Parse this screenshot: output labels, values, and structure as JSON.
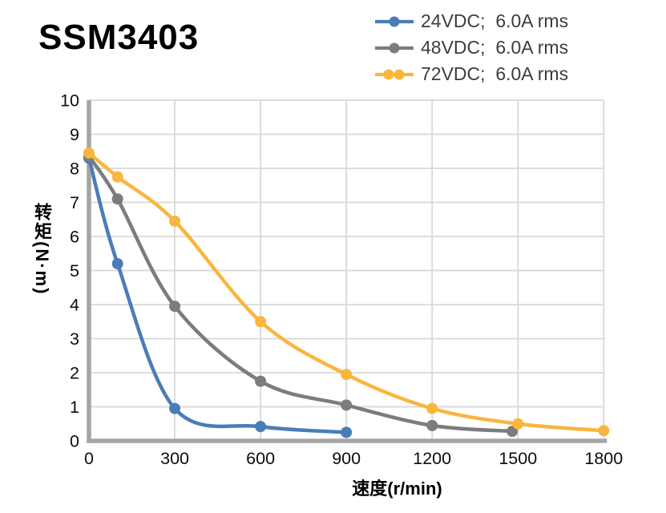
{
  "header": {
    "title": "SSM3403"
  },
  "axes": {
    "x_label": "速度(r/min)",
    "y_label": "转矩(N·m)"
  },
  "chart_data": {
    "type": "line",
    "title": "SSM3403",
    "xlabel": "速度(r/min)",
    "ylabel": "转矩(N·m)",
    "xlim": [
      0,
      1800
    ],
    "ylim": [
      0,
      10
    ],
    "x_ticks": [
      0,
      300,
      600,
      900,
      1200,
      1500,
      1800
    ],
    "y_ticks": [
      0,
      1,
      2,
      3,
      4,
      5,
      6,
      7,
      8,
      9,
      10
    ],
    "grid": true,
    "legend_position": "top-right",
    "series": [
      {
        "name": "24VDC;  6.0A rms",
        "color": "#4a7db7",
        "legend_dots": 1,
        "points": [
          [
            0,
            8.3
          ],
          [
            100,
            5.2
          ],
          [
            300,
            0.95
          ],
          [
            600,
            0.42
          ],
          [
            900,
            0.25
          ]
        ]
      },
      {
        "name": "48VDC;  6.0A rms",
        "color": "#7c7c7c",
        "legend_dots": 1,
        "points": [
          [
            0,
            8.35
          ],
          [
            100,
            7.1
          ],
          [
            300,
            3.95
          ],
          [
            600,
            1.75
          ],
          [
            900,
            1.05
          ],
          [
            1200,
            0.45
          ],
          [
            1480,
            0.28
          ]
        ]
      },
      {
        "name": "72VDC;  6.0A rms",
        "color": "#f9b63e",
        "legend_dots": 2,
        "points": [
          [
            0,
            8.45
          ],
          [
            100,
            7.75
          ],
          [
            300,
            6.45
          ],
          [
            600,
            3.5
          ],
          [
            900,
            1.95
          ],
          [
            1200,
            0.95
          ],
          [
            1500,
            0.5
          ],
          [
            1800,
            0.3
          ]
        ]
      }
    ],
    "colors": {
      "grid": "#d8d8d8",
      "axis": "#a5a5a5",
      "tick_text": "#0d0d0d",
      "legend_text": "#3d3d3d",
      "title_text": "#000000"
    }
  }
}
